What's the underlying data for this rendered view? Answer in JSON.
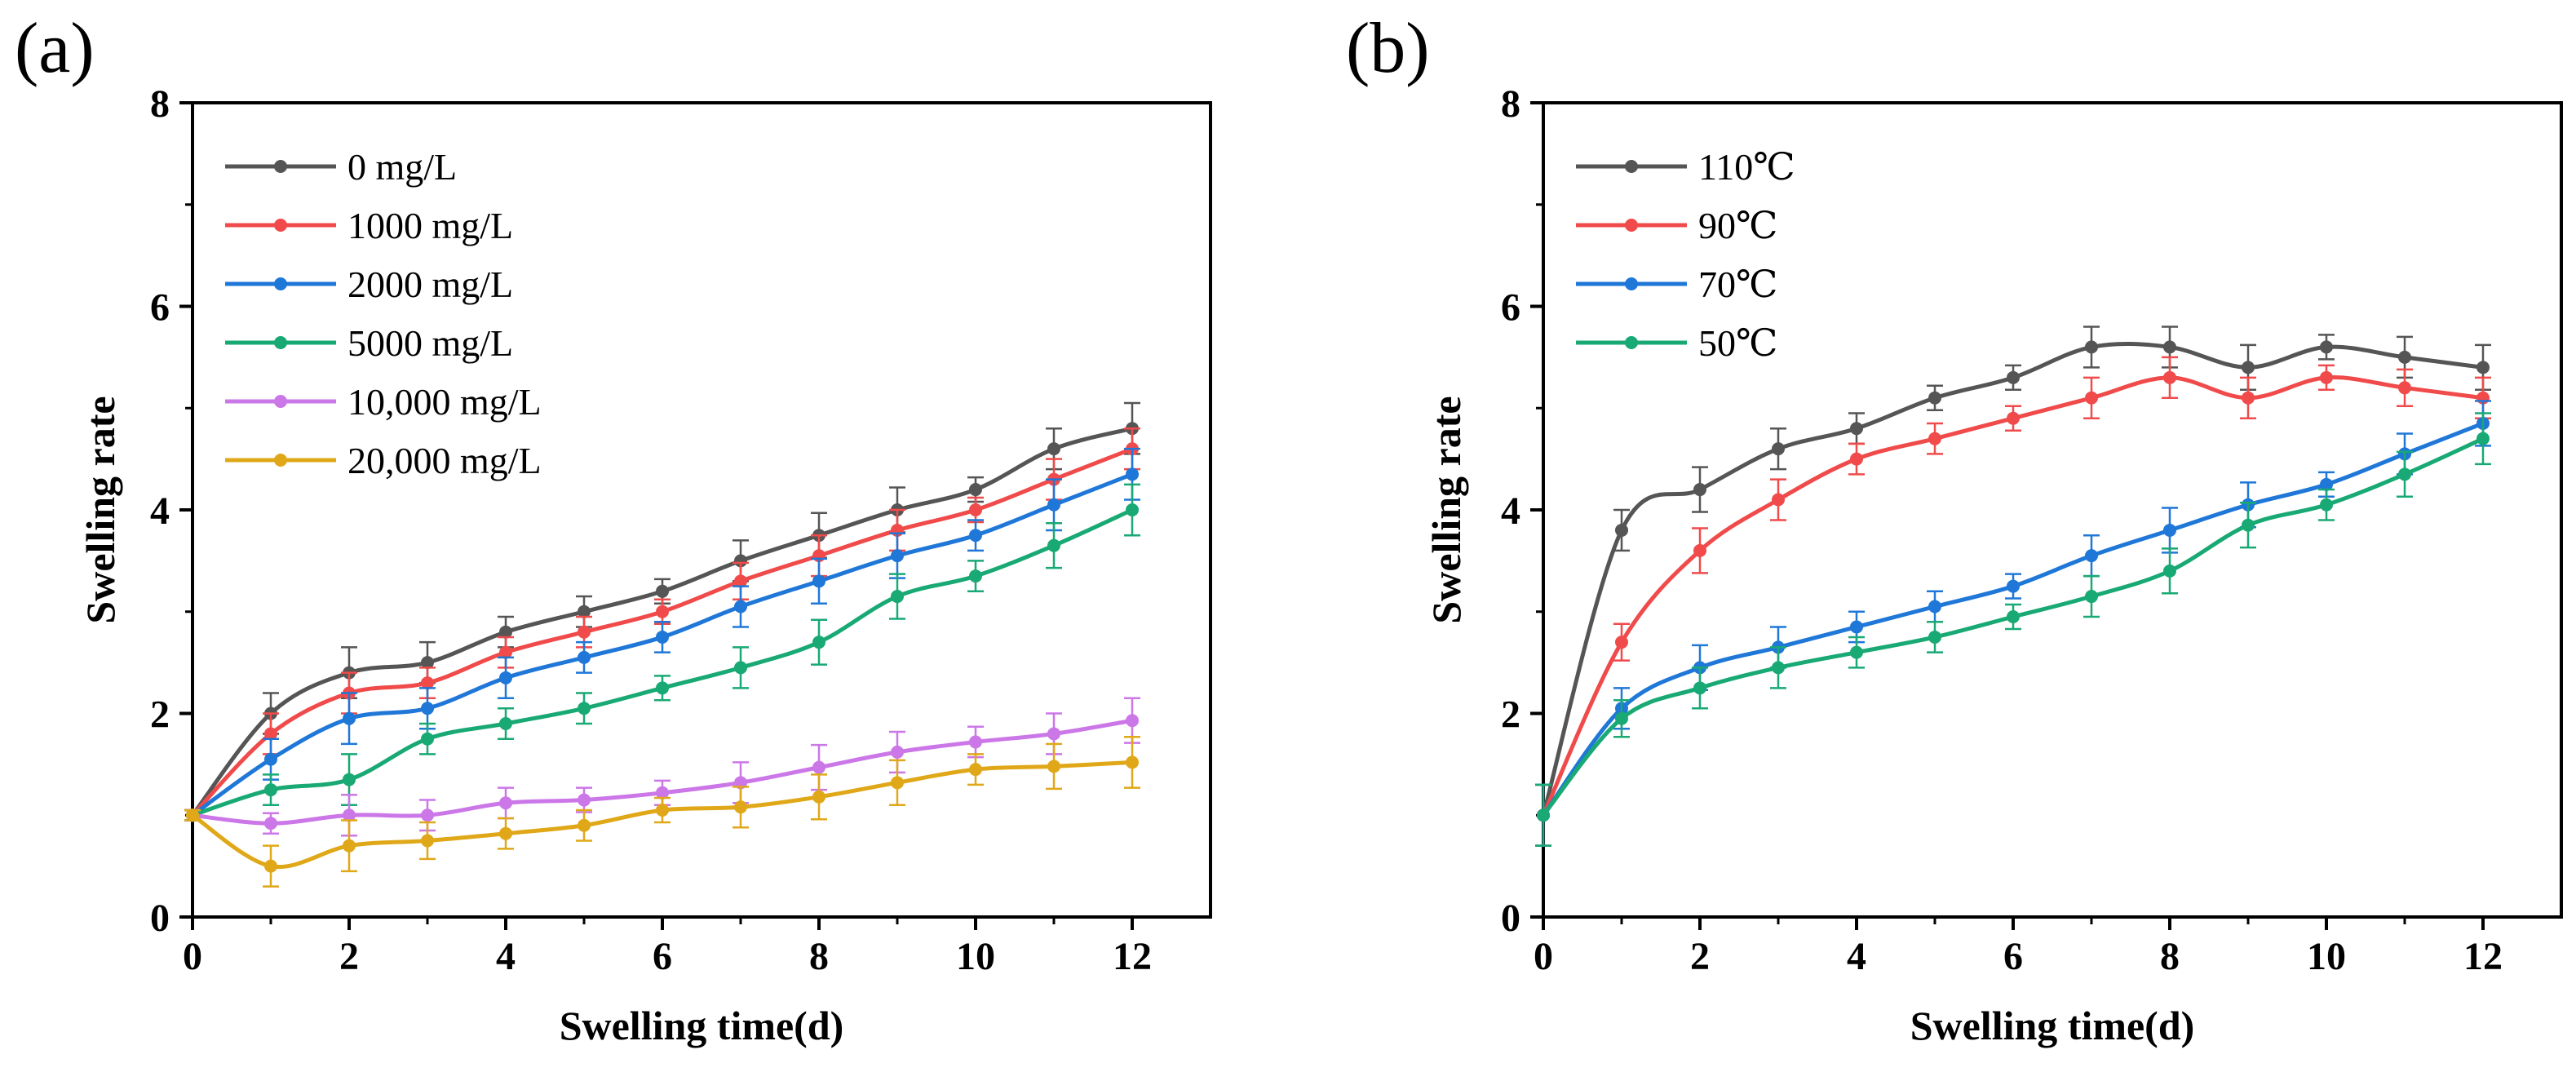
{
  "chart_data": [
    {
      "type": "line",
      "panel_label": "(a)",
      "xlabel": "Swelling time(d)",
      "ylabel": "Swelling rate",
      "xlim": [
        0,
        13
      ],
      "ylim": [
        0,
        8
      ],
      "xticks": [
        0,
        2,
        4,
        6,
        8,
        10,
        12
      ],
      "yticks": [
        0,
        2,
        4,
        6,
        8
      ],
      "legend_position": "top-left",
      "x": [
        0,
        1,
        2,
        3,
        4,
        5,
        6,
        7,
        8,
        9,
        10,
        11,
        12
      ],
      "series": [
        {
          "name": "0 mg/L",
          "color": "#555555",
          "values": [
            1.0,
            2.0,
            2.4,
            2.5,
            2.8,
            3.0,
            3.2,
            3.5,
            3.75,
            4.0,
            4.2,
            4.6,
            4.8
          ],
          "errors": [
            0.05,
            0.2,
            0.25,
            0.2,
            0.15,
            0.15,
            0.12,
            0.2,
            0.22,
            0.22,
            0.12,
            0.2,
            0.25
          ]
        },
        {
          "name": "1000 mg/L",
          "color": "#f04a4a",
          "values": [
            1.0,
            1.8,
            2.2,
            2.3,
            2.6,
            2.8,
            3.0,
            3.3,
            3.55,
            3.8,
            4.0,
            4.3,
            4.6
          ],
          "errors": [
            0.05,
            0.2,
            0.2,
            0.15,
            0.15,
            0.15,
            0.12,
            0.18,
            0.2,
            0.2,
            0.12,
            0.2,
            0.2
          ]
        },
        {
          "name": "2000 mg/L",
          "color": "#1f77d8",
          "values": [
            1.0,
            1.55,
            1.95,
            2.05,
            2.35,
            2.55,
            2.75,
            3.05,
            3.3,
            3.55,
            3.75,
            4.05,
            4.35
          ],
          "errors": [
            0.05,
            0.2,
            0.25,
            0.2,
            0.2,
            0.15,
            0.15,
            0.2,
            0.22,
            0.22,
            0.15,
            0.25,
            0.25
          ]
        },
        {
          "name": "5000 mg/L",
          "color": "#18a974",
          "values": [
            1.0,
            1.25,
            1.35,
            1.75,
            1.9,
            2.05,
            2.25,
            2.45,
            2.7,
            3.15,
            3.35,
            3.65,
            4.0
          ],
          "errors": [
            0.05,
            0.15,
            0.25,
            0.15,
            0.15,
            0.15,
            0.12,
            0.2,
            0.22,
            0.22,
            0.15,
            0.22,
            0.25
          ]
        },
        {
          "name": "10,000 mg/L",
          "color": "#cc77e8",
          "values": [
            1.0,
            0.92,
            1.0,
            1.0,
            1.12,
            1.15,
            1.22,
            1.32,
            1.47,
            1.62,
            1.72,
            1.8,
            1.93
          ],
          "errors": [
            0.05,
            0.1,
            0.2,
            0.15,
            0.15,
            0.12,
            0.12,
            0.2,
            0.22,
            0.2,
            0.15,
            0.2,
            0.22
          ]
        },
        {
          "name": "20,000 mg/L",
          "color": "#e0a818",
          "values": [
            1.0,
            0.5,
            0.7,
            0.75,
            0.82,
            0.9,
            1.05,
            1.08,
            1.18,
            1.32,
            1.45,
            1.48,
            1.52
          ],
          "errors": [
            0.05,
            0.2,
            0.25,
            0.18,
            0.15,
            0.15,
            0.12,
            0.2,
            0.22,
            0.22,
            0.15,
            0.22,
            0.25
          ]
        }
      ]
    },
    {
      "type": "line",
      "panel_label": "(b)",
      "xlabel": "Swelling time(d)",
      "ylabel": "Swelling rate",
      "xlim": [
        0,
        13
      ],
      "ylim": [
        0,
        8
      ],
      "xticks": [
        0,
        2,
        4,
        6,
        8,
        10,
        12
      ],
      "yticks": [
        0,
        2,
        4,
        6,
        8
      ],
      "legend_position": "top-left",
      "x": [
        0,
        1,
        2,
        3,
        4,
        5,
        6,
        7,
        8,
        9,
        10,
        11,
        12
      ],
      "series": [
        {
          "name": "110℃",
          "color": "#555555",
          "values": [
            1.0,
            3.8,
            4.2,
            4.6,
            4.8,
            5.1,
            5.3,
            5.6,
            5.6,
            5.4,
            5.6,
            5.5,
            5.4
          ],
          "errors": [
            0.3,
            0.2,
            0.22,
            0.2,
            0.15,
            0.12,
            0.12,
            0.2,
            0.2,
            0.22,
            0.12,
            0.2,
            0.22
          ]
        },
        {
          "name": "90℃",
          "color": "#f04a4a",
          "values": [
            1.0,
            2.7,
            3.6,
            4.1,
            4.5,
            4.7,
            4.9,
            5.1,
            5.3,
            5.1,
            5.3,
            5.2,
            5.1
          ],
          "errors": [
            0.3,
            0.18,
            0.22,
            0.2,
            0.15,
            0.15,
            0.12,
            0.2,
            0.2,
            0.2,
            0.12,
            0.18,
            0.2
          ]
        },
        {
          "name": "70℃",
          "color": "#1f77d8",
          "values": [
            1.0,
            2.05,
            2.45,
            2.65,
            2.85,
            3.05,
            3.25,
            3.55,
            3.8,
            4.05,
            4.25,
            4.55,
            4.85
          ],
          "errors": [
            0.3,
            0.2,
            0.22,
            0.2,
            0.15,
            0.15,
            0.12,
            0.2,
            0.22,
            0.22,
            0.12,
            0.2,
            0.22
          ]
        },
        {
          "name": "50℃",
          "color": "#18a974",
          "values": [
            1.0,
            1.95,
            2.25,
            2.45,
            2.6,
            2.75,
            2.95,
            3.15,
            3.4,
            3.85,
            4.05,
            4.35,
            4.7
          ],
          "errors": [
            0.3,
            0.18,
            0.2,
            0.2,
            0.15,
            0.15,
            0.12,
            0.2,
            0.22,
            0.22,
            0.15,
            0.22,
            0.25
          ]
        }
      ]
    }
  ]
}
